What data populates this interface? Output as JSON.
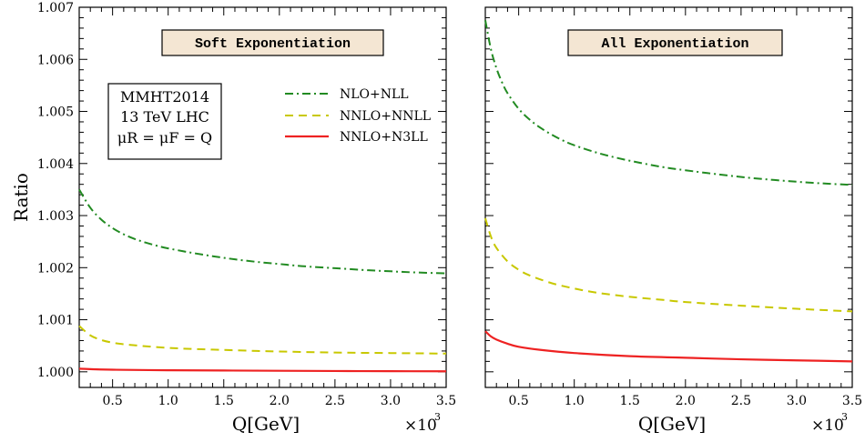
{
  "chart_data": [
    {
      "type": "line",
      "title": "Soft Exponentiation",
      "xlabel": "Q[GeV]",
      "ylabel": "Ratio",
      "x_scale_label": "×10",
      "x_scale_exp": "3",
      "xlim": [
        0.2,
        3.5
      ],
      "ylim": [
        0.9997,
        1.007
      ],
      "xticks": [
        "0.5",
        "1.0",
        "1.5",
        "2.0",
        "2.5",
        "3.0",
        "3.5"
      ],
      "yticks": [
        "1.000",
        "1.001",
        "1.002",
        "1.003",
        "1.004",
        "1.005",
        "1.006",
        "1.007"
      ],
      "info_box": [
        "MMHT2014",
        "13 TeV LHC",
        "μR = μF = Q"
      ],
      "legend": [
        {
          "label": "NLO+NLL",
          "color": "#228B22",
          "dash": "dash-dot"
        },
        {
          "label": "NNLO+NNLL",
          "color": "#C8C800",
          "dash": "dashed"
        },
        {
          "label": "NNLO+N3LL",
          "color": "#EE2222",
          "dash": "solid"
        }
      ],
      "series": [
        {
          "name": "NLO+NLL",
          "color": "#228B22",
          "dash": "dash-dot",
          "x": [
            0.2,
            0.3,
            0.4,
            0.5,
            0.6,
            0.7,
            0.8,
            0.9,
            1.0,
            1.2,
            1.4,
            1.6,
            1.8,
            2.0,
            2.2,
            2.5,
            2.8,
            3.0,
            3.2,
            3.5
          ],
          "y": [
            1.0035,
            1.00315,
            1.00292,
            1.00276,
            1.00264,
            1.00255,
            1.00248,
            1.00242,
            1.00237,
            1.00229,
            1.00222,
            1.00216,
            1.00211,
            1.00207,
            1.00203,
            1.00199,
            1.00195,
            1.00193,
            1.00191,
            1.00189
          ]
        },
        {
          "name": "NNLO+NNLL",
          "color": "#C8C800",
          "dash": "dashed",
          "x": [
            0.2,
            0.3,
            0.4,
            0.5,
            0.6,
            0.8,
            1.0,
            1.2,
            1.5,
            1.8,
            2.0,
            2.5,
            3.0,
            3.5
          ],
          "y": [
            1.00088,
            1.0007,
            1.00061,
            1.00056,
            1.00053,
            1.00049,
            1.00046,
            1.00044,
            1.00042,
            1.0004,
            1.00039,
            1.00037,
            1.00036,
            1.00035
          ]
        },
        {
          "name": "NNLO+N3LL",
          "color": "#EE2222",
          "dash": "solid",
          "x": [
            0.2,
            0.5,
            1.0,
            1.5,
            2.0,
            2.5,
            3.0,
            3.5
          ],
          "y": [
            1.00006,
            1.00004,
            1.00003,
            1.000025,
            1.00002,
            1.000015,
            1.000012,
            1.00001
          ]
        }
      ]
    },
    {
      "type": "line",
      "title": "All Exponentiation",
      "xlabel": "Q[GeV]",
      "ylabel": "",
      "x_scale_label": "×10",
      "x_scale_exp": "3",
      "xlim": [
        0.2,
        3.5
      ],
      "ylim": [
        0.9997,
        1.007
      ],
      "xticks": [
        "0.5",
        "1.0",
        "1.5",
        "2.0",
        "2.5",
        "3.0",
        "3.5"
      ],
      "series": [
        {
          "name": "NLO+NLL",
          "color": "#228B22",
          "dash": "dash-dot",
          "x": [
            0.2,
            0.25,
            0.3,
            0.35,
            0.4,
            0.5,
            0.6,
            0.7,
            0.8,
            0.9,
            1.0,
            1.2,
            1.4,
            1.6,
            1.8,
            2.0,
            2.3,
            2.6,
            3.0,
            3.3,
            3.5
          ],
          "y": [
            1.00675,
            1.0062,
            1.00583,
            1.00556,
            1.00535,
            1.00505,
            1.00484,
            1.00468,
            1.00455,
            1.00444,
            1.00435,
            1.00421,
            1.0041,
            1.00401,
            1.00393,
            1.00387,
            1.00379,
            1.00372,
            1.00365,
            1.00361,
            1.00359
          ]
        },
        {
          "name": "NNLO+NNLL",
          "color": "#C8C800",
          "dash": "dashed",
          "x": [
            0.2,
            0.25,
            0.3,
            0.4,
            0.5,
            0.6,
            0.8,
            1.0,
            1.2,
            1.5,
            1.8,
            2.0,
            2.5,
            3.0,
            3.5
          ],
          "y": [
            1.00295,
            1.0026,
            1.00238,
            1.00212,
            1.00196,
            1.00185,
            1.0017,
            1.0016,
            1.00152,
            1.00144,
            1.00138,
            1.00134,
            1.00127,
            1.00121,
            1.00116
          ]
        },
        {
          "name": "NNLO+N3LL",
          "color": "#EE2222",
          "dash": "solid",
          "x": [
            0.2,
            0.25,
            0.3,
            0.4,
            0.5,
            0.7,
            1.0,
            1.5,
            2.0,
            2.5,
            3.0,
            3.5
          ],
          "y": [
            1.00078,
            1.00068,
            1.00062,
            1.00054,
            1.00048,
            1.00042,
            1.00036,
            1.0003,
            1.00027,
            1.00024,
            1.00022,
            1.0002
          ]
        }
      ]
    }
  ]
}
